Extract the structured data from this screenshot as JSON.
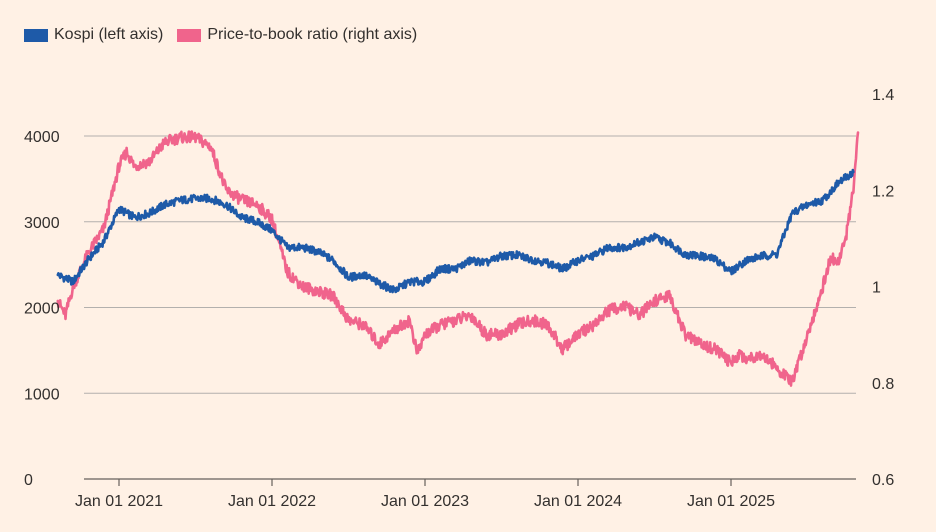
{
  "chart_data": {
    "type": "line",
    "title": "",
    "legend": [
      {
        "label": "Kospi (left axis)",
        "color": "#1E5AA8"
      },
      {
        "label": "Price-to-book ratio (right axis)",
        "color": "#F0648C"
      }
    ],
    "x_ticks": [
      "Jan 01 2021",
      "Jan 01 2022",
      "Jan 01 2023",
      "Jan 01 2024",
      "Jan 01 2025"
    ],
    "left_axis": {
      "min": 0,
      "max": 4000,
      "ticks": [
        "0",
        "1000",
        "2000",
        "3000",
        "4000"
      ],
      "tick_values": [
        0,
        1000,
        2000,
        3000,
        4000
      ]
    },
    "right_axis": {
      "min": 0.6,
      "max": 1.4,
      "ticks": [
        "0.6",
        "0.8",
        "1",
        "1.2",
        "1.4"
      ],
      "tick_values": [
        0.6,
        0.8,
        1.0,
        1.2,
        1.4
      ]
    },
    "series": [
      {
        "name": "Kospi (left axis)",
        "axis": "left",
        "color": "#1E5AA8",
        "x": [
          2020.6,
          2020.7,
          2020.8,
          2020.9,
          2021.0,
          2021.1,
          2021.2,
          2021.3,
          2021.4,
          2021.5,
          2021.6,
          2021.7,
          2021.8,
          2021.9,
          2022.0,
          2022.1,
          2022.2,
          2022.3,
          2022.4,
          2022.5,
          2022.6,
          2022.7,
          2022.8,
          2022.9,
          2023.0,
          2023.1,
          2023.2,
          2023.3,
          2023.4,
          2023.5,
          2023.6,
          2023.7,
          2023.8,
          2023.9,
          2024.0,
          2024.1,
          2024.2,
          2024.3,
          2024.4,
          2024.5,
          2024.6,
          2024.7,
          2024.8,
          2024.9,
          2025.0,
          2025.1,
          2025.2,
          2025.3,
          2025.4,
          2025.5,
          2025.6,
          2025.7,
          2025.8
        ],
        "y": [
          2380,
          2300,
          2560,
          2770,
          3150,
          3050,
          3100,
          3200,
          3250,
          3270,
          3270,
          3200,
          3050,
          3000,
          2900,
          2700,
          2700,
          2650,
          2550,
          2350,
          2380,
          2280,
          2200,
          2300,
          2300,
          2450,
          2450,
          2550,
          2520,
          2600,
          2610,
          2560,
          2520,
          2450,
          2550,
          2600,
          2700,
          2700,
          2760,
          2820,
          2750,
          2620,
          2600,
          2560,
          2420,
          2550,
          2600,
          2620,
          3100,
          3200,
          3250,
          3450,
          3580
        ]
      },
      {
        "name": "Price-to-book ratio (right axis)",
        "axis": "right",
        "color": "#F0648C",
        "x": [
          2020.6,
          2020.65,
          2020.7,
          2020.8,
          2020.9,
          2021.0,
          2021.05,
          2021.1,
          2021.2,
          2021.3,
          2021.4,
          2021.5,
          2021.6,
          2021.7,
          2021.8,
          2021.9,
          2022.0,
          2022.1,
          2022.2,
          2022.3,
          2022.4,
          2022.5,
          2022.6,
          2022.7,
          2022.8,
          2022.9,
          2022.95,
          2023.0,
          2023.1,
          2023.2,
          2023.3,
          2023.4,
          2023.5,
          2023.6,
          2023.7,
          2023.8,
          2023.9,
          2024.0,
          2024.1,
          2024.2,
          2024.3,
          2024.4,
          2024.5,
          2024.6,
          2024.7,
          2024.8,
          2024.9,
          2025.0,
          2025.05,
          2025.1,
          2025.2,
          2025.3,
          2025.4,
          2025.5,
          2025.6,
          2025.65,
          2025.7,
          2025.75,
          2025.8,
          2025.83
        ],
        "y": [
          0.97,
          0.94,
          1.0,
          1.07,
          1.12,
          1.25,
          1.28,
          1.25,
          1.26,
          1.3,
          1.31,
          1.31,
          1.29,
          1.2,
          1.18,
          1.17,
          1.14,
          1.03,
          1.0,
          0.99,
          0.98,
          0.93,
          0.92,
          0.88,
          0.91,
          0.93,
          0.86,
          0.9,
          0.92,
          0.93,
          0.94,
          0.9,
          0.9,
          0.92,
          0.93,
          0.92,
          0.87,
          0.9,
          0.92,
          0.95,
          0.96,
          0.94,
          0.97,
          0.98,
          0.9,
          0.88,
          0.87,
          0.84,
          0.86,
          0.85,
          0.86,
          0.83,
          0.8,
          0.9,
          1.0,
          1.06,
          1.05,
          1.1,
          1.2,
          1.32
        ]
      }
    ]
  }
}
